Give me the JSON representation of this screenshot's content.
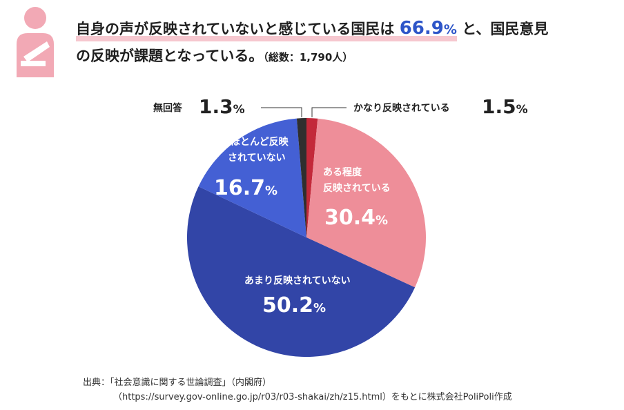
{
  "header": {
    "line1_before": "自身の声が反映されていないと感じている国民は",
    "line1_number": "66.9",
    "line1_percent": "%",
    "line1_after": "と、国民意見",
    "line2": "の反映が課題となっている。",
    "line2_note": "（総数：1,790人）"
  },
  "icon": {
    "name": "person-sling-icon",
    "color": "#f2a9b5"
  },
  "chart_data": {
    "type": "pie",
    "start": "12 o'clock",
    "direction": "clockwise",
    "slices": [
      {
        "name": "かなり反映されている",
        "value": 1.5,
        "label_value": "1.5",
        "color": "#c3293a"
      },
      {
        "name": "ある程度反映されている",
        "label_lines": [
          "ある程度",
          "反映されている"
        ],
        "value": 30.4,
        "label_value": "30.4",
        "color": "#ee8e99"
      },
      {
        "name": "あまり反映されていない",
        "label_lines": [
          "あまり反映されていない"
        ],
        "value": 50.2,
        "label_value": "50.2",
        "color": "#3245a7"
      },
      {
        "name": "ほとんど反映されていない",
        "label_lines": [
          "ほとんど反映",
          "されていない"
        ],
        "value": 16.7,
        "label_value": "16.7",
        "color": "#4460d4"
      },
      {
        "name": "無回答",
        "value": 1.3,
        "label_value": "1.3",
        "color": "#2f2f2f"
      }
    ],
    "percent_symbol": "%"
  },
  "source": {
    "line1": "出典：「社会意識に関する世論調査」（内閣府）",
    "line2": "（https://survey.gov-online.go.jp/r03/r03-shakai/zh/z15.html）をもとに株式会社PoliPoli作成"
  }
}
